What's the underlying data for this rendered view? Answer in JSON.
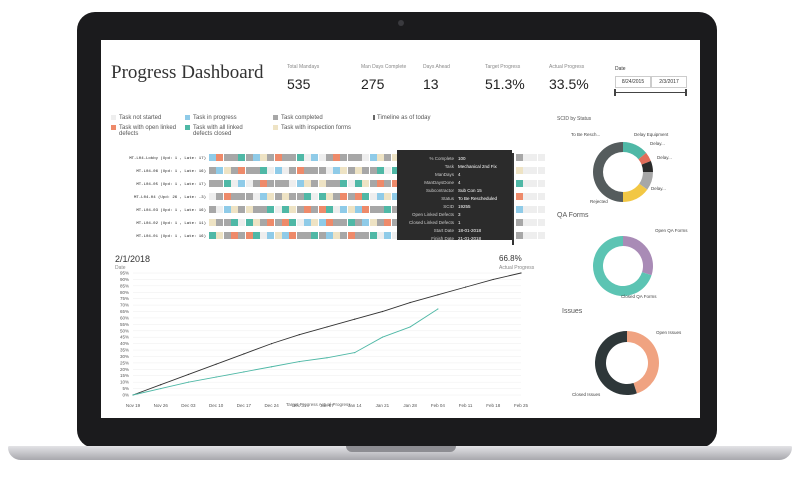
{
  "dashboard": {
    "title": "Progress Dashboard",
    "kpis": [
      {
        "label": "Total Mandays",
        "value": "535"
      },
      {
        "label": "Man Days Complete",
        "value": "275"
      },
      {
        "label": "Days Ahead",
        "value": "13"
      },
      {
        "label": "Target Progress",
        "value": "51.3%"
      },
      {
        "label": "Actual Progress",
        "value": "33.5%"
      }
    ],
    "date": {
      "label": "Date",
      "start": "8/24/2015",
      "end": "2/3/2017"
    }
  },
  "legend": [
    {
      "label": "Task not started",
      "color": "#eeeeee"
    },
    {
      "label": "Task in progress",
      "color": "#8fcbe8"
    },
    {
      "label": "Task completed",
      "color": "#a7a7a7"
    },
    {
      "label": "Timeline as of today",
      "color": "#666666"
    },
    {
      "label": "Task with open linked defects",
      "color": "#ee8a6a"
    },
    {
      "label": "Task with all linked defects closed",
      "color": "#4fb8a6"
    },
    {
      "label": "Task with inspection forms",
      "color": "#eee3c4"
    }
  ],
  "gantt": {
    "rows": [
      "MT-L04-Lobby (Upd: 1 , Late: 17)",
      "MT-L04-06 (Upd: 1 , Late: 16)",
      "MT-L04-05 (Upd: 1 , Late: 17)",
      "MT-L04-04 (Upd: 26 , Late: -3)",
      "MT-L04-03 (Upd: 1 , Late: 16)",
      "MT-L04-02 (Upd: 1 , Late: 11)",
      "MT-L04-01 (Upd: 1 , Late: 16)"
    ]
  },
  "tooltip": {
    "rows": [
      {
        "k": "% Complete",
        "v": "100"
      },
      {
        "k": "Task",
        "v": "Mechanical 2nd Fix"
      },
      {
        "k": "ManDays",
        "v": "4"
      },
      {
        "k": "ManDaysDone",
        "v": "4"
      },
      {
        "k": "Subcontractor",
        "v": "Sub Con 15"
      },
      {
        "k": "Status",
        "v": "To Be Rescheduled"
      },
      {
        "k": "SCID",
        "v": "19255"
      },
      {
        "k": "Open Linked Defects",
        "v": "3"
      },
      {
        "k": "Closed Linked Defects",
        "v": "1"
      },
      {
        "k": "Start Date",
        "v": "18-01-2018"
      },
      {
        "k": "Finish Date",
        "v": "21-01-2018"
      }
    ]
  },
  "progress_chart": {
    "date_value": "2/1/2018",
    "date_label": "Date",
    "actual_value": "66.8%",
    "actual_label": "Actual Progress",
    "legend_text": "Target Progress  Actual Progress",
    "yticks": [
      "95%",
      "90%",
      "85%",
      "80%",
      "75%",
      "70%",
      "65%",
      "60%",
      "55%",
      "50%",
      "45%",
      "40%",
      "35%",
      "30%",
      "25%",
      "20%",
      "15%",
      "10%",
      "5%",
      "0%"
    ],
    "xticks": [
      "Nov 19",
      "Nov 26",
      "Dec 03",
      "Dec 10",
      "Dec 17",
      "Dec 24",
      "Dec 31",
      "Jan 07",
      "Jan 14",
      "Jan 21",
      "Jan 28",
      "Feb 04",
      "Feb 11",
      "Feb 18",
      "Feb 25"
    ]
  },
  "chart_data": [
    {
      "type": "line",
      "title": "",
      "ylim": [
        0,
        95
      ],
      "x": [
        "Nov 19",
        "Nov 26",
        "Dec 03",
        "Dec 10",
        "Dec 17",
        "Dec 24",
        "Dec 31",
        "Jan 07",
        "Jan 14",
        "Jan 21",
        "Jan 28",
        "Feb 04",
        "Feb 11",
        "Feb 18",
        "Feb 25"
      ],
      "series": [
        {
          "name": "Target Progress",
          "color": "#333333",
          "values": [
            0,
            8,
            16,
            24,
            32,
            40,
            47,
            53,
            59,
            65,
            72,
            78,
            84,
            90,
            95
          ]
        },
        {
          "name": "Actual Progress",
          "color": "#4fb8a6",
          "values": [
            0,
            5,
            10,
            14,
            18,
            22,
            26,
            29,
            33,
            45,
            53,
            67,
            null,
            null,
            null
          ]
        }
      ]
    },
    {
      "type": "pie",
      "title": "SCID by Status",
      "categories": [
        "To Be Resch...",
        "Delay Equipment",
        "Delay...",
        "Delay...",
        "Delay...",
        "Rejected"
      ],
      "values": [
        14,
        5,
        6,
        10,
        15,
        50
      ],
      "colors": [
        "#4fb8a6",
        "#e26d5a",
        "#2b2b2b",
        "#a7a7a7",
        "#f2c744",
        "#555c5d"
      ]
    },
    {
      "type": "pie",
      "title": "QA Forms",
      "categories": [
        "Open QA Forms",
        "Closed QA Forms"
      ],
      "values": [
        30,
        70
      ],
      "colors": [
        "#a98bb6",
        "#5cc4b3"
      ]
    },
    {
      "type": "pie",
      "title": "Issues",
      "categories": [
        "Open Issues",
        "Closed Issues"
      ],
      "values": [
        45,
        55
      ],
      "colors": [
        "#f0a381",
        "#2e3739"
      ]
    }
  ]
}
